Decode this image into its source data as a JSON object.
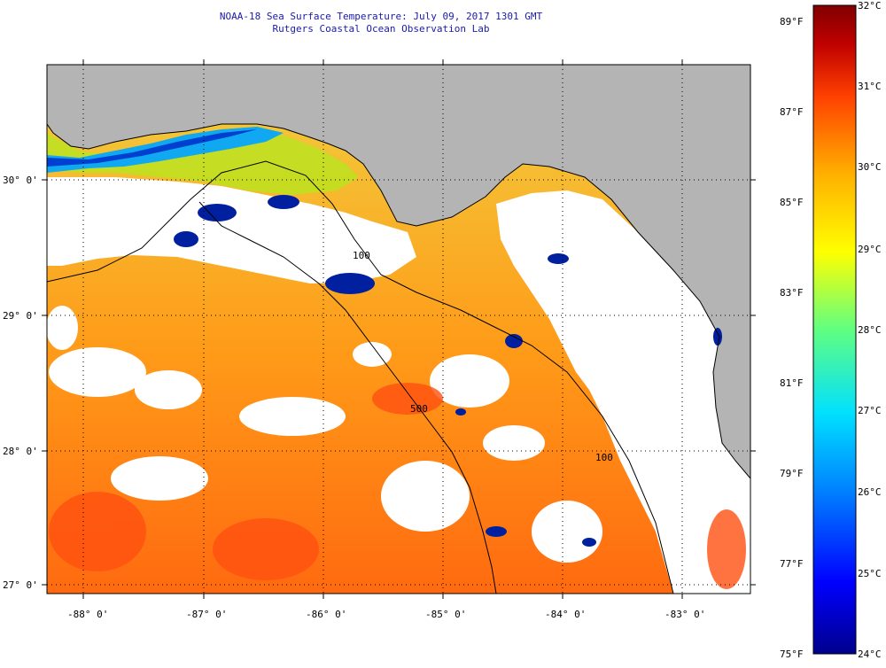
{
  "header": {
    "title": "NOAA-18 Sea Surface Temperature:  July 09, 2017 1301 GMT",
    "subtitle": "Rutgers Coastal Ocean Observation Lab"
  },
  "map": {
    "lat_labels": [
      "30° 0'",
      "29° 0'",
      "28° 0'",
      "27° 0'"
    ],
    "lon_labels": [
      "-88° 0'",
      "-87° 0'",
      "-86° 0'",
      "-85° 0'",
      "-84° 0'",
      "-83° 0'"
    ],
    "contour_labels": [
      "100",
      "500",
      "100"
    ],
    "colors": {
      "land": "#b4b4b4",
      "cloud": "#ffffff",
      "grid": "#000000",
      "coast": "#000000"
    }
  },
  "colorbar": {
    "f_labels": [
      "89°F",
      "87°F",
      "85°F",
      "83°F",
      "81°F",
      "79°F",
      "77°F",
      "75°F"
    ],
    "c_labels": [
      "32°C",
      "31°C",
      "30°C",
      "29°C",
      "28°C",
      "27°C",
      "26°C",
      "25°C",
      "24°C"
    ],
    "stops": [
      "#00008c",
      "#0000ff",
      "#0080ff",
      "#00e0ff",
      "#60ff80",
      "#ffff00",
      "#ffb000",
      "#ff4000",
      "#c00000",
      "#800000"
    ]
  }
}
